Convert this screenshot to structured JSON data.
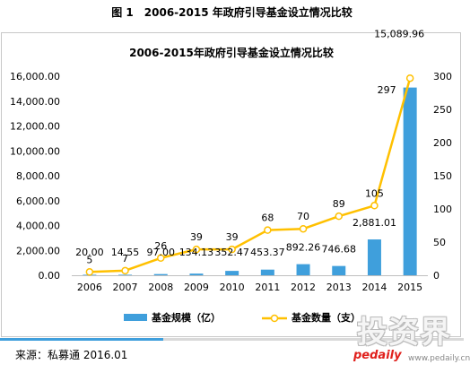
{
  "figure_caption": "图 1　2006-2015 年政府引导基金设立情况比较",
  "chart_data": {
    "type": "bar+line",
    "title": "2006-2015年政府引导基金设立情况比较",
    "categories": [
      "2006",
      "2007",
      "2008",
      "2009",
      "2010",
      "2011",
      "2012",
      "2013",
      "2014",
      "2015"
    ],
    "series": [
      {
        "name": "基金规模（亿）",
        "type": "bar",
        "axis": "left",
        "color": "#3f9fdc",
        "values": [
          20.0,
          14.55,
          97.0,
          134.13,
          352.47,
          453.37,
          892.26,
          746.68,
          2881.01,
          15089.96
        ],
        "labels": [
          "20.00",
          "14.55",
          "97.00",
          "134.13",
          "352.47",
          "453.37",
          "892.26",
          "746.68",
          "2,881.01",
          "15,089.96"
        ]
      },
      {
        "name": "基金数量（支）",
        "type": "line",
        "axis": "right",
        "color": "#ffc000",
        "values": [
          5,
          7,
          26,
          39,
          39,
          68,
          70,
          89,
          105,
          297
        ],
        "labels": [
          "5",
          "7",
          "26",
          "39",
          "39",
          "68",
          "70",
          "89",
          "105",
          "297"
        ]
      }
    ],
    "y_left": {
      "min": 0,
      "max": 16000,
      "ticks": [
        "0.00",
        "2,000.00",
        "4,000.00",
        "6,000.00",
        "8,000.00",
        "10,000.00",
        "12,000.00",
        "14,000.00",
        "16,000.00"
      ]
    },
    "y_right": {
      "min": 0,
      "max": 300,
      "ticks": [
        "0",
        "50",
        "100",
        "150",
        "200",
        "250",
        "300"
      ]
    },
    "legend_position": "bottom",
    "grid": false
  },
  "source_note": "来源：私募通 2016.01",
  "watermark": {
    "logo": "投资界",
    "brand": "pedaily",
    "url": "www.pedaily.cn"
  }
}
